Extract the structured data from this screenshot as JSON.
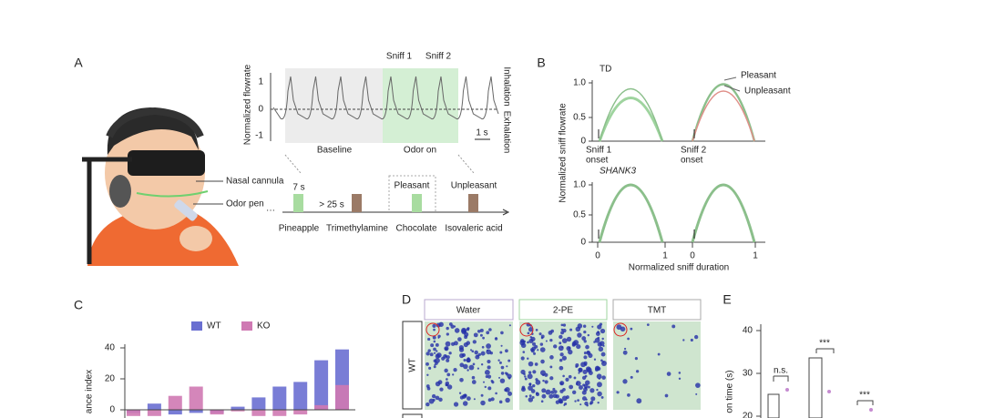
{
  "panels": {
    "A": {
      "label": "A",
      "y_axis": "Normalized flowrate",
      "yticks": [
        "1",
        "0",
        "-1"
      ],
      "inhalation": "Inhalation",
      "exhalation": "Exhalation",
      "sniff1": "Sniff 1",
      "sniff2": "Sniff 2",
      "baseline": "Baseline",
      "odor_on": "Odor on",
      "scale": "1 s",
      "nasal_cannula": "Nasal cannula",
      "odor_pen": "Odor pen",
      "duration": "7 s",
      "interval": "> 25 s",
      "pleasant": "Pleasant",
      "unpleasant": "Unpleasant",
      "ellipsis": "···",
      "odors": [
        "Pineapple",
        "Trimethylamine",
        "Chocolate",
        "Isovaleric acid"
      ]
    },
    "B": {
      "label": "B",
      "y_axis": "Normalized sniff flowrate",
      "x_axis": "Normalized sniff duration",
      "td": "TD",
      "shank3": "SHANK3",
      "legend": [
        "Pleasant",
        "Unpleasant"
      ],
      "yticks": [
        "1.0",
        "0.5",
        "0"
      ],
      "xticks": [
        "0",
        "1",
        "0",
        "1"
      ],
      "sniff1_onset": [
        "Sniff 1",
        "onset"
      ],
      "sniff2_onset": [
        "Sniff 2",
        "onset"
      ]
    },
    "C": {
      "label": "C",
      "y_axis": "ance index",
      "yticks": [
        40,
        20,
        0
      ],
      "series": [
        {
          "name": "WT",
          "color": "#6a6fd1",
          "values": [
            -2,
            4,
            -3,
            -2,
            -2,
            2,
            8,
            15,
            18,
            32,
            39
          ]
        },
        {
          "name": "KO",
          "color": "#cf79b3",
          "values": [
            -4,
            -4,
            9,
            15,
            -3,
            -1,
            -4,
            -4,
            -3,
            3,
            16
          ]
        }
      ]
    },
    "D": {
      "label": "D",
      "columns": [
        "Water",
        "2-PE",
        "TMT"
      ],
      "rows": [
        "WT"
      ]
    },
    "E": {
      "label": "E",
      "y_axis": "on time (s)",
      "yticks": [
        "40",
        "30",
        "20"
      ],
      "stats": [
        "n.s.",
        "***",
        "***"
      ]
    }
  }
}
